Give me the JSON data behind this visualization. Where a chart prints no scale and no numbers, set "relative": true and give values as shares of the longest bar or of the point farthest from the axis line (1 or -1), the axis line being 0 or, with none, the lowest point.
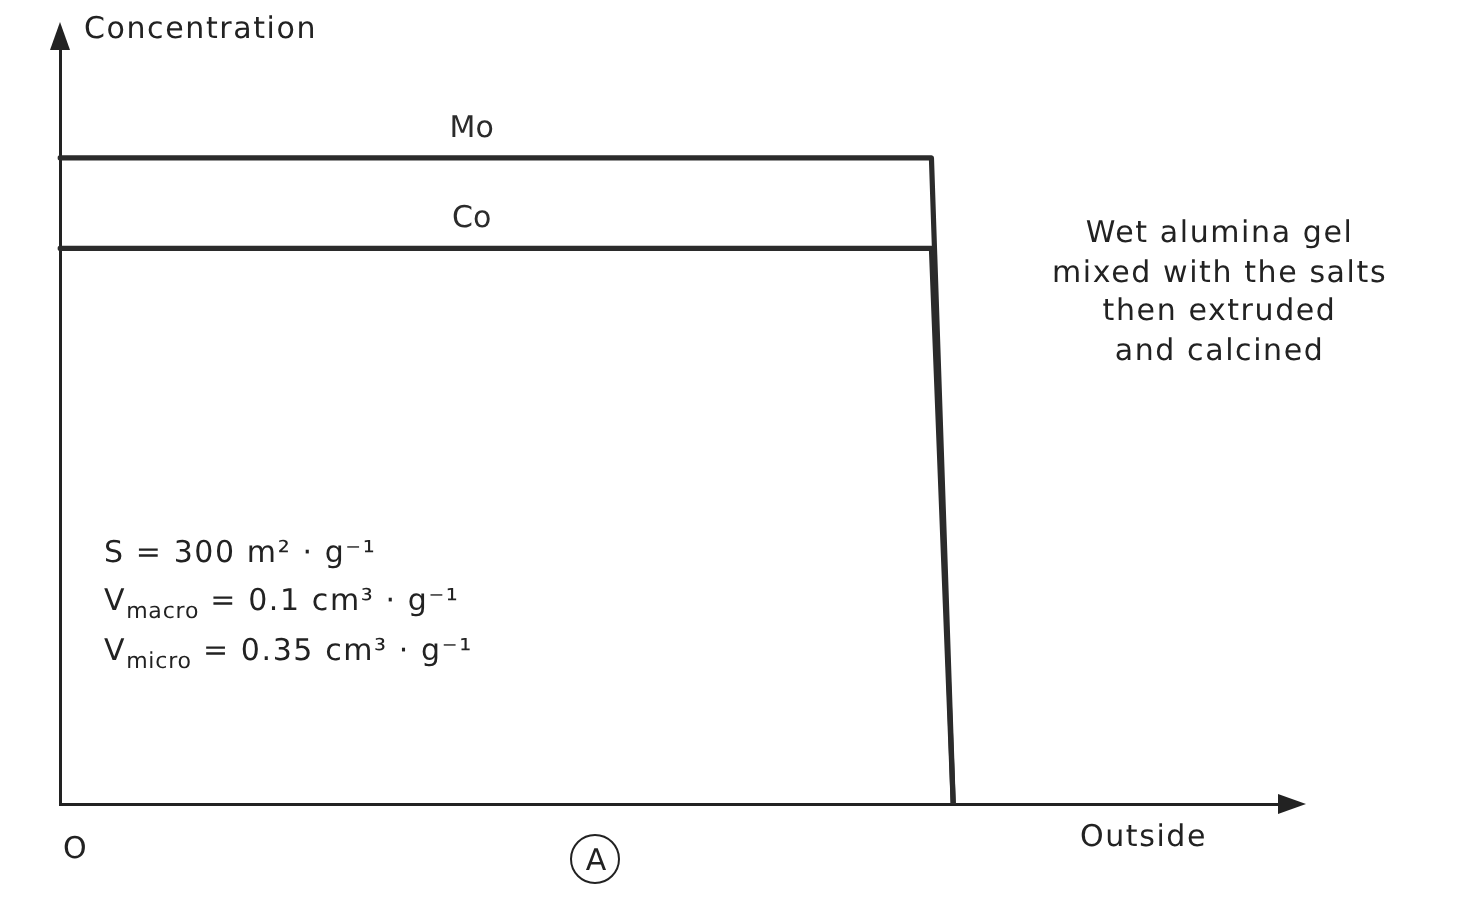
{
  "chart_data": {
    "type": "line",
    "relative": true,
    "ylabel": "Concentration",
    "xlabel": "Outside",
    "categories": [
      null,
      null,
      null,
      null,
      null,
      null,
      null,
      null,
      null,
      null,
      null,
      null,
      null,
      null,
      null,
      null,
      null,
      null,
      null,
      null,
      null,
      null,
      null,
      null,
      null,
      null,
      null,
      null,
      null,
      null,
      null,
      null,
      null,
      null,
      null,
      null,
      null,
      null,
      null,
      null,
      null,
      null,
      null,
      null,
      null,
      null,
      null,
      null,
      null,
      null,
      null,
      null,
      null,
      null,
      null,
      null,
      null
    ],
    "series": [
      {
        "name": "Mo",
        "color": "#2b2b2b",
        "values": [
          1,
          1,
          1,
          1,
          1,
          1,
          1,
          1,
          1,
          1,
          1,
          1,
          1,
          1,
          1,
          1,
          1,
          1,
          1,
          1,
          1,
          1,
          1,
          1,
          1,
          1,
          1,
          1,
          1,
          1,
          1,
          1,
          1,
          1,
          1,
          1,
          1,
          1,
          1,
          1,
          1,
          0,
          null,
          null,
          null,
          null,
          null,
          null,
          null,
          null,
          null,
          null,
          null,
          null,
          null,
          null,
          null
        ]
      },
      {
        "name": "Co",
        "color": "#2b2b2b",
        "values": [
          0.86,
          0.86,
          0.86,
          0.86,
          0.86,
          0.86,
          0.86,
          0.86,
          0.86,
          0.86,
          0.86,
          0.86,
          0.86,
          0.86,
          0.86,
          0.86,
          0.86,
          0.86,
          0.86,
          0.86,
          0.86,
          0.86,
          0.86,
          0.86,
          0.86,
          0.86,
          0.86,
          0.86,
          0.86,
          0.86,
          0.86,
          0.86,
          0.86,
          0.86,
          0.86,
          0.86,
          0.86,
          0.86,
          0.86,
          0.86,
          0.86,
          0,
          null,
          null,
          null,
          null,
          null,
          null,
          null,
          null,
          null,
          null,
          null,
          null,
          null,
          null,
          null
        ]
      }
    ],
    "annotations": [
      "Wet alumina gel\nmixed with the salts\nthen extruded\nand calcined",
      "S = 300 m² · g⁻¹",
      "V$_{macro}$ = 0.1 cm³ · g⁻¹",
      "V$_{micro}$ = 0.35 cm³ · g⁻¹",
      "O",
      "A"
    ]
  }
}
